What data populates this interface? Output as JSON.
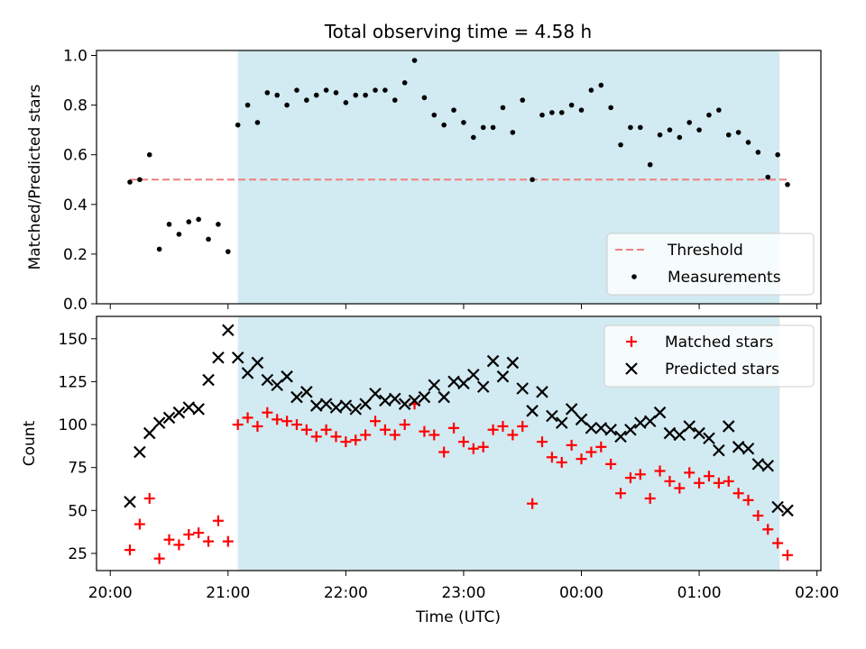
{
  "chart_data": [
    {
      "type": "scatter",
      "title": "Total observing time = 4.58 h",
      "ylabel": "Matched/Predicted stars",
      "xlim": [
        "19:53",
        "02:02"
      ],
      "ylim": [
        0,
        1.02
      ],
      "yticks": [
        0.0,
        0.2,
        0.4,
        0.6,
        0.8,
        1.0
      ],
      "ytick_labels": [
        "0.0",
        "0.2",
        "0.4",
        "0.6",
        "0.8",
        "1.0"
      ],
      "grid": false,
      "legend_position": "bottom-right",
      "highlight_band": {
        "x_start": "21:05",
        "x_end": "01:41",
        "color": "#add8e6"
      },
      "threshold": {
        "name": "Threshold",
        "y": 0.5,
        "x_start": "20:10",
        "x_end": "01:46",
        "color": "#f08080",
        "style": "dashed"
      },
      "series": [
        {
          "name": "Measurements",
          "color": "#000000",
          "marker": "dot",
          "x": [
            "20:10",
            "20:15",
            "20:20",
            "20:25",
            "20:30",
            "20:35",
            "20:40",
            "20:45",
            "20:50",
            "20:55",
            "21:00",
            "21:05",
            "21:10",
            "21:15",
            "21:20",
            "21:25",
            "21:30",
            "21:35",
            "21:40",
            "21:45",
            "21:50",
            "21:55",
            "22:00",
            "22:05",
            "22:10",
            "22:15",
            "22:20",
            "22:25",
            "22:30",
            "22:35",
            "22:40",
            "22:45",
            "22:50",
            "22:55",
            "23:00",
            "23:05",
            "23:10",
            "23:15",
            "23:20",
            "23:25",
            "23:30",
            "23:35",
            "23:40",
            "23:45",
            "23:50",
            "23:55",
            "00:00",
            "00:05",
            "00:10",
            "00:15",
            "00:20",
            "00:25",
            "00:30",
            "00:35",
            "00:40",
            "00:45",
            "00:50",
            "00:55",
            "01:00",
            "01:05",
            "01:10",
            "01:15",
            "01:20",
            "01:25",
            "01:30",
            "01:35",
            "01:40",
            "01:45"
          ],
          "y": [
            0.49,
            0.5,
            0.6,
            0.22,
            0.32,
            0.28,
            0.33,
            0.34,
            0.26,
            0.32,
            0.21,
            0.72,
            0.8,
            0.73,
            0.85,
            0.84,
            0.8,
            0.86,
            0.82,
            0.84,
            0.86,
            0.85,
            0.81,
            0.84,
            0.84,
            0.86,
            0.86,
            0.82,
            0.89,
            0.98,
            0.83,
            0.76,
            0.72,
            0.78,
            0.73,
            0.67,
            0.71,
            0.71,
            0.79,
            0.69,
            0.82,
            0.5,
            0.76,
            0.77,
            0.77,
            0.8,
            0.78,
            0.86,
            0.88,
            0.79,
            0.64,
            0.71,
            0.71,
            0.56,
            0.68,
            0.7,
            0.67,
            0.73,
            0.7,
            0.76,
            0.78,
            0.68,
            0.69,
            0.65,
            0.61,
            0.51,
            0.6,
            0.48
          ]
        }
      ]
    },
    {
      "type": "scatter",
      "xlabel": "Time (UTC)",
      "ylabel": "Count",
      "xlim": [
        "19:53",
        "02:02"
      ],
      "ylim": [
        15,
        163
      ],
      "yticks": [
        25,
        50,
        75,
        100,
        125,
        150
      ],
      "ytick_labels": [
        "25",
        "50",
        "75",
        "100",
        "125",
        "150"
      ],
      "xtick_labels": [
        "20:00",
        "21:00",
        "22:00",
        "23:00",
        "00:00",
        "01:00",
        "02:00"
      ],
      "grid": false,
      "legend_position": "top-right",
      "highlight_band": {
        "x_start": "21:05",
        "x_end": "01:41",
        "color": "#add8e6"
      },
      "series": [
        {
          "name": "Matched stars",
          "color": "#ff0000",
          "marker": "plus",
          "x": [
            "20:10",
            "20:15",
            "20:20",
            "20:25",
            "20:30",
            "20:35",
            "20:40",
            "20:45",
            "20:50",
            "20:55",
            "21:00",
            "21:05",
            "21:10",
            "21:15",
            "21:20",
            "21:25",
            "21:30",
            "21:35",
            "21:40",
            "21:45",
            "21:50",
            "21:55",
            "22:00",
            "22:05",
            "22:10",
            "22:15",
            "22:20",
            "22:25",
            "22:30",
            "22:35",
            "22:40",
            "22:45",
            "22:50",
            "22:55",
            "23:00",
            "23:05",
            "23:10",
            "23:15",
            "23:20",
            "23:25",
            "23:30",
            "23:35",
            "23:40",
            "23:45",
            "23:50",
            "23:55",
            "00:00",
            "00:05",
            "00:10",
            "00:15",
            "00:20",
            "00:25",
            "00:30",
            "00:35",
            "00:40",
            "00:45",
            "00:50",
            "00:55",
            "01:00",
            "01:05",
            "01:10",
            "01:15",
            "01:20",
            "01:25",
            "01:30",
            "01:35",
            "01:40",
            "01:45"
          ],
          "y": [
            27,
            42,
            57,
            22,
            33,
            30,
            36,
            37,
            32,
            44,
            32,
            100,
            104,
            99,
            107,
            103,
            102,
            100,
            97,
            93,
            97,
            93,
            90,
            91,
            94,
            102,
            97,
            94,
            100,
            112,
            96,
            94,
            84,
            98,
            90,
            86,
            87,
            97,
            99,
            94,
            99,
            54,
            90,
            81,
            78,
            88,
            80,
            84,
            87,
            77,
            60,
            69,
            71,
            57,
            73,
            67,
            63,
            72,
            66,
            70,
            66,
            67,
            60,
            56,
            47,
            39,
            31,
            24
          ]
        },
        {
          "name": "Predicted stars",
          "color": "#000000",
          "marker": "x",
          "x": [
            "20:10",
            "20:15",
            "20:20",
            "20:25",
            "20:30",
            "20:35",
            "20:40",
            "20:45",
            "20:50",
            "20:55",
            "21:00",
            "21:05",
            "21:10",
            "21:15",
            "21:20",
            "21:25",
            "21:30",
            "21:35",
            "21:40",
            "21:45",
            "21:50",
            "21:55",
            "22:00",
            "22:05",
            "22:10",
            "22:15",
            "22:20",
            "22:25",
            "22:30",
            "22:35",
            "22:40",
            "22:45",
            "22:50",
            "22:55",
            "23:00",
            "23:05",
            "23:10",
            "23:15",
            "23:20",
            "23:25",
            "23:30",
            "23:35",
            "23:40",
            "23:45",
            "23:50",
            "23:55",
            "00:00",
            "00:05",
            "00:10",
            "00:15",
            "00:20",
            "00:25",
            "00:30",
            "00:35",
            "00:40",
            "00:45",
            "00:50",
            "00:55",
            "01:00",
            "01:05",
            "01:10",
            "01:15",
            "01:20",
            "01:25",
            "01:30",
            "01:35",
            "01:40",
            "01:45"
          ],
          "y": [
            55,
            84,
            95,
            101,
            104,
            107,
            110,
            109,
            126,
            139,
            155,
            139,
            130,
            136,
            126,
            123,
            128,
            116,
            119,
            111,
            112,
            110,
            111,
            109,
            112,
            118,
            114,
            115,
            112,
            114,
            116,
            123,
            116,
            125,
            124,
            129,
            122,
            137,
            128,
            136,
            121,
            108,
            119,
            105,
            101,
            109,
            103,
            98,
            98,
            97,
            93,
            97,
            101,
            102,
            107,
            95,
            94,
            99,
            95,
            92,
            85,
            99,
            87,
            86,
            77,
            76,
            52,
            50
          ]
        }
      ]
    }
  ]
}
